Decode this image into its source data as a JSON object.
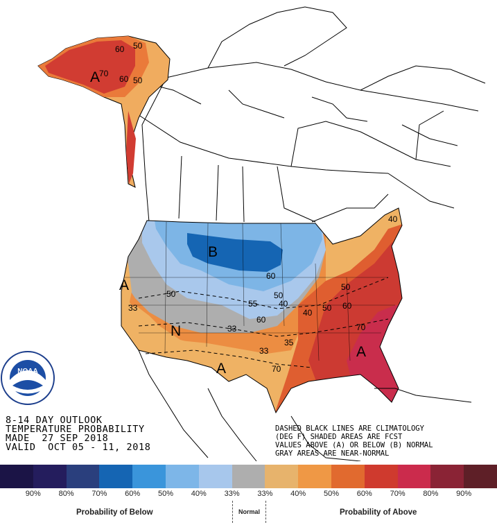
{
  "title_lines": [
    "8-14 DAY OUTLOOK",
    "TEMPERATURE PROBABILITY",
    "MADE  27 SEP 2018",
    "VALID  OCT 05 - 11, 2018"
  ],
  "notes": [
    "DASHED BLACK LINES ARE CLIMATOLOGY",
    "(DEG F) SHADED AREAS ARE FCST",
    "VALUES ABOVE (A) OR BELOW (B) NORMAL",
    "GRAY AREAS ARE NEAR-NORMAL"
  ],
  "logo_text": "NOAA",
  "logo_ring_text": "NATIONAL OCEANIC AND ATMOSPHERIC ADMINISTRATION · U.S. DEPARTMENT OF COMMERCE",
  "region_letters": {
    "alaska_above": "A",
    "west_above": "A",
    "below": "B",
    "normal": "N",
    "southwest_above": "A",
    "southeast_above": "A"
  },
  "contour_labels": [
    "60",
    "50",
    "70",
    "60",
    "50",
    "60",
    "50",
    "33",
    "50",
    "55",
    "40",
    "60",
    "50",
    "40",
    "50",
    "60",
    "70",
    "40",
    "35",
    "33",
    "70",
    "40",
    "A"
  ],
  "legend": {
    "colors": [
      "#1b1446",
      "#241d5d",
      "#2a3f7d",
      "#1565b3",
      "#3a95db",
      "#7db6e8",
      "#a7c7ec",
      "#aeaeae",
      "#e7b36c",
      "#ef9845",
      "#e16a2f",
      "#cf3a2e",
      "#cb2b4c",
      "#8a2335",
      "#5e1f27"
    ],
    "tick_labels": [
      "90%",
      "80%",
      "70%",
      "60%",
      "50%",
      "40%",
      "33%",
      "33%",
      "40%",
      "50%",
      "60%",
      "70%",
      "80%",
      "90%"
    ],
    "below_caption": "Probability of Below",
    "normal_caption": "Normal",
    "above_caption": "Probability of Above"
  },
  "map_colors": {
    "alaska_dark": "#d13c32",
    "alaska_mid": "#ea7a3a",
    "alaska_light": "#f0ac5f",
    "blue_light": "#a9c8ec",
    "blue_mid": "#7db5e6",
    "blue_dark": "#1565b3",
    "gray": "#aeaeae",
    "orange_light": "#efb264",
    "orange": "#ec8d42",
    "red_orange": "#df5e30",
    "red": "#cc3a32",
    "crimson": "#c92d4c"
  }
}
